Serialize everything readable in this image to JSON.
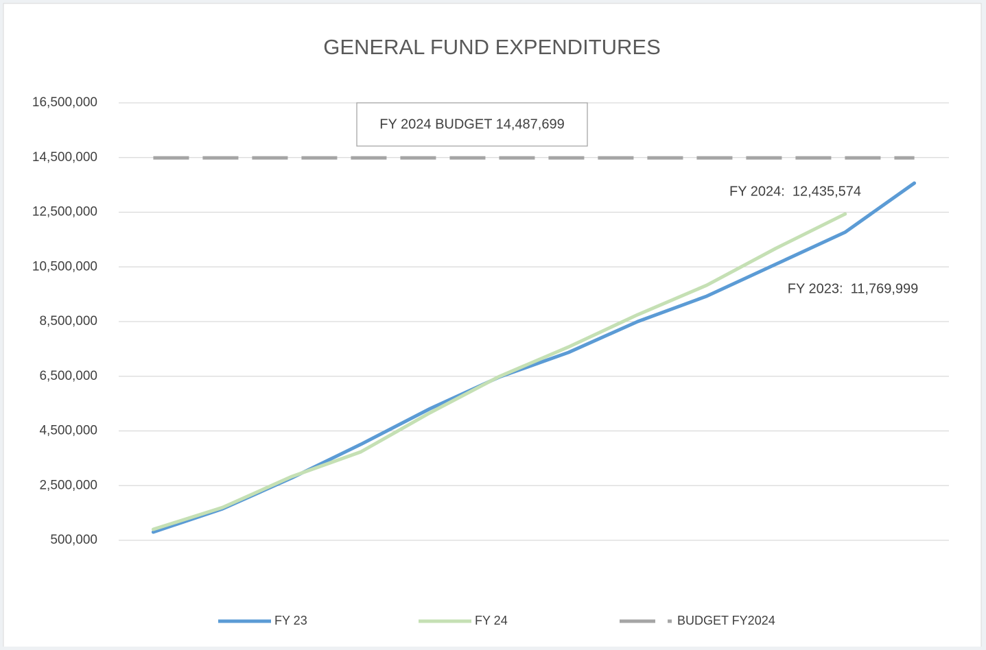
{
  "chart_data": {
    "type": "line",
    "title": "GENERAL FUND EXPENDITURES",
    "categories": [
      null,
      null,
      null,
      null,
      null,
      null,
      null,
      null,
      null,
      null,
      null,
      null
    ],
    "series": [
      {
        "name": "FY 23",
        "color": "#5b9bd5",
        "values": [
          800000,
          1650000,
          2780000,
          4010000,
          5315000,
          6470000,
          7370000,
          8500000,
          9430000,
          10600000,
          11769999,
          13565000
        ]
      },
      {
        "name": "FY 24",
        "color": "#c5e0b4",
        "values": [
          900000,
          1700000,
          2830000,
          3735000,
          5165000,
          6490000,
          7570000,
          8750000,
          9830000,
          11180000,
          12435574,
          null
        ]
      },
      {
        "name": "BUDGET FY2024",
        "color": "#a5a5a5",
        "dashed": true,
        "values": [
          14487699,
          14487699,
          14487699,
          14487699,
          14487699,
          14487699,
          14487699,
          14487699,
          14487699,
          14487699,
          14487699,
          14487699
        ]
      }
    ],
    "annotations": [
      "FY 2024 BUDGET 14,487,699",
      "FY 2024:  12,435,574",
      "FY 2023:  11,769,999"
    ],
    "ylim": [
      500000,
      16500000
    ],
    "yticks": [
      {
        "value": 500000,
        "label": "500,000"
      },
      {
        "value": 2500000,
        "label": "2,500,000"
      },
      {
        "value": 4500000,
        "label": "4,500,000"
      },
      {
        "value": 6500000,
        "label": "6,500,000"
      },
      {
        "value": 8500000,
        "label": "8,500,000"
      },
      {
        "value": 10500000,
        "label": "10,500,000"
      },
      {
        "value": 12500000,
        "label": "12,500,000"
      },
      {
        "value": 14500000,
        "label": "14,500,000"
      },
      {
        "value": 16500000,
        "label": "16,500,000"
      }
    ],
    "grid": true,
    "legend": "bottom"
  }
}
